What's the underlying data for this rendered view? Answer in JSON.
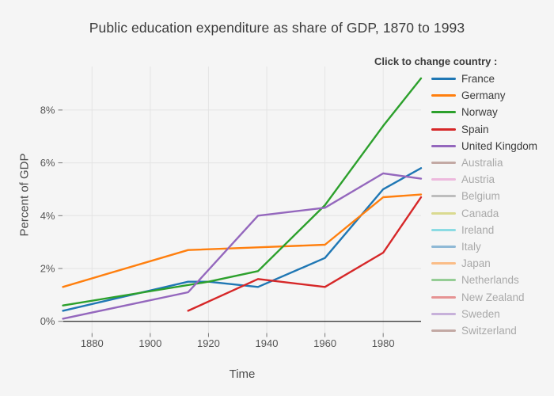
{
  "title": "Public education expenditure as share of GDP, 1870 to 1993",
  "axes": {
    "x": {
      "label": "Time",
      "tick_labels": [
        "1880",
        "1900",
        "1920",
        "1940",
        "1960",
        "1980"
      ],
      "tick_years": [
        1880,
        1900,
        1920,
        1940,
        1960,
        1980
      ],
      "range": [
        1870,
        1993
      ]
    },
    "y": {
      "label": "Percent of GDP",
      "tick_labels": [
        "0%",
        "2%",
        "4%",
        "6%",
        "8%"
      ],
      "tick_values": [
        0,
        2,
        4,
        6,
        8
      ],
      "range": [
        -0.45,
        9.6
      ]
    }
  },
  "legend": {
    "header": "Click to change country :"
  },
  "colors": {
    "background": "#f5f5f5",
    "gridline": "#e4e4e4",
    "axis_line": "#3b3b3b",
    "tick_mark": "#787878",
    "tick_text": "#565656",
    "title_text": "#3c3c3c",
    "axis_title_text": "#4c4c4c",
    "active_label_text": "#3b3b3b",
    "inactive_label_text": "#a9a9a9"
  },
  "chart_data": {
    "type": "line",
    "title": "Public education expenditure as share of GDP, 1870 to 1993",
    "xlabel": "Time",
    "ylabel": "Percent of GDP",
    "x_ticks": [
      1880,
      1900,
      1920,
      1940,
      1960,
      1980
    ],
    "y_ticks": [
      0,
      2,
      4,
      6,
      8
    ],
    "xlim": [
      1870,
      1993
    ],
    "ylim": [
      -0.45,
      9.6
    ],
    "grid": true,
    "legend_position": "right",
    "series": [
      {
        "name": "France",
        "color": "#1f77b4",
        "active": true,
        "points": [
          [
            1870,
            0.4
          ],
          [
            1913,
            1.5
          ],
          [
            1920,
            1.5
          ],
          [
            1937,
            1.3
          ],
          [
            1960,
            2.4
          ],
          [
            1980,
            5.0
          ],
          [
            1993,
            5.8
          ]
        ]
      },
      {
        "name": "Germany",
        "color": "#ff7f0e",
        "active": true,
        "points": [
          [
            1870,
            1.3
          ],
          [
            1913,
            2.7
          ],
          [
            1937,
            2.8
          ],
          [
            1960,
            2.9
          ],
          [
            1980,
            4.7
          ],
          [
            1993,
            4.8
          ]
        ]
      },
      {
        "name": "Norway",
        "color": "#2ca02c",
        "active": true,
        "points": [
          [
            1870,
            0.6
          ],
          [
            1920,
            1.5
          ],
          [
            1937,
            1.9
          ],
          [
            1960,
            4.4
          ],
          [
            1980,
            7.4
          ],
          [
            1993,
            9.2
          ]
        ]
      },
      {
        "name": "Spain",
        "color": "#d62728",
        "active": true,
        "points": [
          [
            1913,
            0.4
          ],
          [
            1937,
            1.6
          ],
          [
            1960,
            1.3
          ],
          [
            1980,
            2.6
          ],
          [
            1993,
            4.7
          ]
        ]
      },
      {
        "name": "United Kingdom",
        "color": "#9467bd",
        "active": true,
        "points": [
          [
            1870,
            0.1
          ],
          [
            1913,
            1.1
          ],
          [
            1937,
            4.0
          ],
          [
            1960,
            4.3
          ],
          [
            1980,
            5.6
          ],
          [
            1993,
            5.4
          ]
        ]
      },
      {
        "name": "Australia",
        "color": "#8c564b",
        "active": false,
        "points": []
      },
      {
        "name": "Austria",
        "color": "#e377c2",
        "active": false,
        "points": []
      },
      {
        "name": "Belgium",
        "color": "#7f7f7f",
        "active": false,
        "points": []
      },
      {
        "name": "Canada",
        "color": "#bcbd22",
        "active": false,
        "points": []
      },
      {
        "name": "Ireland",
        "color": "#17becf",
        "active": false,
        "points": []
      },
      {
        "name": "Italy",
        "color": "#1f77b4",
        "active": false,
        "points": []
      },
      {
        "name": "Japan",
        "color": "#ff7f0e",
        "active": false,
        "points": []
      },
      {
        "name": "Netherlands",
        "color": "#2ca02c",
        "active": false,
        "points": []
      },
      {
        "name": "New Zealand",
        "color": "#d62728",
        "active": false,
        "points": []
      },
      {
        "name": "Sweden",
        "color": "#9467bd",
        "active": false,
        "points": []
      },
      {
        "name": "Switzerland",
        "color": "#8c564b",
        "active": false,
        "points": []
      }
    ]
  }
}
